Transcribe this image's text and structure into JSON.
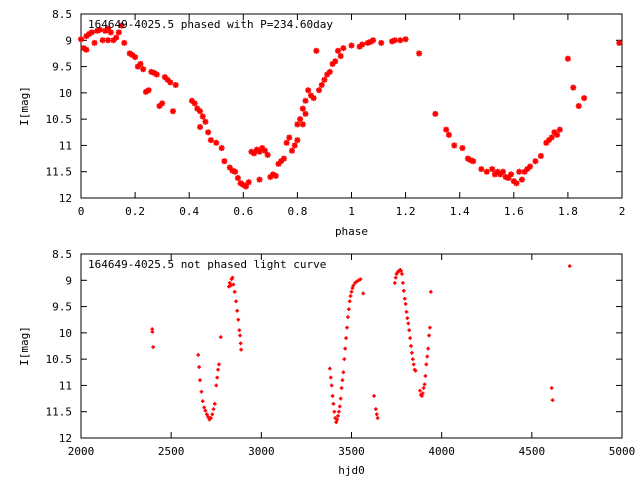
{
  "chart_data": [
    {
      "type": "scatter",
      "title": "164649-4025.5 phased with P=234.60day",
      "xlabel": "phase",
      "ylabel": "I[mag]",
      "xlim": [
        0,
        2
      ],
      "ylim": [
        8.5,
        12
      ],
      "y_inverted": true,
      "x_ticks": [
        "0",
        "0.2",
        "0.4",
        "0.6",
        "0.8",
        "1",
        "1.2",
        "1.4",
        "1.6",
        "1.8",
        "2"
      ],
      "y_ticks": [
        "8.5",
        "9",
        "9.5",
        "10",
        "10.5",
        "11",
        "11.5",
        "12"
      ],
      "grid": false,
      "marker_color": "#ff0000",
      "series": [
        {
          "points": [
            [
              0.0,
              8.98
            ],
            [
              0.01,
              9.15
            ],
            [
              0.02,
              9.18
            ],
            [
              0.02,
              8.92
            ],
            [
              0.03,
              8.88
            ],
            [
              0.04,
              8.85
            ],
            [
              0.05,
              9.05
            ],
            [
              0.06,
              8.82
            ],
            [
              0.07,
              8.8
            ],
            [
              0.08,
              9.0
            ],
            [
              0.09,
              8.82
            ],
            [
              0.1,
              8.78
            ],
            [
              0.1,
              9.0
            ],
            [
              0.11,
              8.85
            ],
            [
              0.12,
              9.0
            ],
            [
              0.13,
              8.95
            ],
            [
              0.14,
              8.85
            ],
            [
              0.15,
              8.72
            ],
            [
              0.16,
              9.05
            ],
            [
              0.18,
              9.25
            ],
            [
              0.19,
              9.28
            ],
            [
              0.2,
              9.32
            ],
            [
              0.21,
              9.5
            ],
            [
              0.22,
              9.45
            ],
            [
              0.23,
              9.55
            ],
            [
              0.24,
              9.98
            ],
            [
              0.25,
              9.95
            ],
            [
              0.26,
              9.6
            ],
            [
              0.27,
              9.62
            ],
            [
              0.28,
              9.65
            ],
            [
              0.29,
              10.25
            ],
            [
              0.3,
              10.2
            ],
            [
              0.31,
              9.7
            ],
            [
              0.32,
              9.75
            ],
            [
              0.33,
              9.8
            ],
            [
              0.34,
              10.35
            ],
            [
              0.35,
              9.85
            ],
            [
              0.41,
              10.15
            ],
            [
              0.42,
              10.2
            ],
            [
              0.43,
              10.3
            ],
            [
              0.44,
              10.35
            ],
            [
              0.45,
              10.45
            ],
            [
              0.44,
              10.65
            ],
            [
              0.46,
              10.55
            ],
            [
              0.47,
              10.75
            ],
            [
              0.48,
              10.9
            ],
            [
              0.5,
              10.95
            ],
            [
              0.52,
              11.05
            ],
            [
              0.53,
              11.3
            ],
            [
              0.55,
              11.42
            ],
            [
              0.56,
              11.48
            ],
            [
              0.57,
              11.5
            ],
            [
              0.58,
              11.62
            ],
            [
              0.59,
              11.72
            ],
            [
              0.6,
              11.75
            ],
            [
              0.61,
              11.78
            ],
            [
              0.62,
              11.7
            ],
            [
              0.63,
              11.12
            ],
            [
              0.64,
              11.15
            ],
            [
              0.65,
              11.08
            ],
            [
              0.66,
              11.12
            ],
            [
              0.66,
              11.65
            ],
            [
              0.67,
              11.05
            ],
            [
              0.68,
              11.1
            ],
            [
              0.69,
              11.18
            ],
            [
              0.7,
              11.6
            ],
            [
              0.71,
              11.55
            ],
            [
              0.72,
              11.58
            ],
            [
              0.73,
              11.35
            ],
            [
              0.74,
              11.3
            ],
            [
              0.75,
              11.25
            ],
            [
              0.76,
              10.95
            ],
            [
              0.77,
              10.85
            ],
            [
              0.78,
              11.1
            ],
            [
              0.79,
              11.0
            ],
            [
              0.8,
              10.9
            ],
            [
              0.8,
              10.6
            ],
            [
              0.81,
              10.5
            ],
            [
              0.82,
              10.3
            ],
            [
              0.82,
              10.6
            ],
            [
              0.83,
              10.15
            ],
            [
              0.83,
              10.4
            ],
            [
              0.84,
              9.95
            ],
            [
              0.85,
              10.05
            ],
            [
              0.86,
              10.1
            ],
            [
              0.87,
              9.2
            ],
            [
              0.88,
              9.95
            ],
            [
              0.89,
              9.85
            ],
            [
              0.9,
              9.75
            ],
            [
              0.91,
              9.65
            ],
            [
              0.92,
              9.6
            ],
            [
              0.93,
              9.45
            ],
            [
              0.94,
              9.4
            ],
            [
              0.95,
              9.2
            ],
            [
              0.96,
              9.3
            ],
            [
              0.97,
              9.15
            ],
            [
              1.0,
              9.1
            ],
            [
              1.03,
              9.12
            ],
            [
              1.04,
              9.08
            ],
            [
              1.06,
              9.05
            ],
            [
              1.07,
              9.03
            ],
            [
              1.08,
              9.0
            ],
            [
              1.11,
              9.05
            ],
            [
              1.15,
              9.02
            ],
            [
              1.16,
              9.0
            ],
            [
              1.18,
              9.0
            ],
            [
              1.2,
              8.98
            ],
            [
              1.25,
              9.25
            ],
            [
              1.31,
              10.4
            ],
            [
              1.35,
              10.7
            ],
            [
              1.36,
              10.8
            ],
            [
              1.38,
              11.0
            ],
            [
              1.41,
              11.05
            ],
            [
              1.43,
              11.25
            ],
            [
              1.44,
              11.28
            ],
            [
              1.45,
              11.3
            ],
            [
              1.48,
              11.45
            ],
            [
              1.5,
              11.5
            ],
            [
              1.52,
              11.45
            ],
            [
              1.53,
              11.55
            ],
            [
              1.54,
              11.5
            ],
            [
              1.55,
              11.55
            ],
            [
              1.56,
              11.5
            ],
            [
              1.57,
              11.6
            ],
            [
              1.58,
              11.62
            ],
            [
              1.59,
              11.55
            ],
            [
              1.6,
              11.68
            ],
            [
              1.61,
              11.72
            ],
            [
              1.62,
              11.5
            ],
            [
              1.63,
              11.65
            ],
            [
              1.64,
              11.5
            ],
            [
              1.65,
              11.45
            ],
            [
              1.66,
              11.4
            ],
            [
              1.68,
              11.3
            ],
            [
              1.7,
              11.2
            ],
            [
              1.72,
              10.95
            ],
            [
              1.73,
              10.9
            ],
            [
              1.74,
              10.85
            ],
            [
              1.75,
              10.75
            ],
            [
              1.76,
              10.8
            ],
            [
              1.77,
              10.7
            ],
            [
              1.8,
              9.35
            ],
            [
              1.82,
              9.9
            ],
            [
              1.84,
              10.25
            ],
            [
              1.86,
              10.1
            ],
            [
              1.99,
              9.05
            ]
          ]
        }
      ]
    },
    {
      "type": "scatter",
      "title": "164649-4025.5 not phased light curve",
      "xlabel": "hjd0",
      "ylabel": "I[mag]",
      "xlim": [
        2000,
        5000
      ],
      "ylim": [
        8.5,
        12
      ],
      "y_inverted": true,
      "x_ticks": [
        "2000",
        "2500",
        "3000",
        "3500",
        "4000",
        "4500",
        "5000"
      ],
      "y_ticks": [
        "8.5",
        "9",
        "9.5",
        "10",
        "10.5",
        "11",
        "11.5",
        "12"
      ],
      "grid": false,
      "marker_color": "#ff0000",
      "series": [
        {
          "points": [
            [
              2395,
              9.93
            ],
            [
              2396,
              9.98
            ],
            [
              2400,
              10.27
            ],
            [
              2650,
              10.42
            ],
            [
              2655,
              10.65
            ],
            [
              2660,
              10.9
            ],
            [
              2668,
              11.12
            ],
            [
              2675,
              11.3
            ],
            [
              2683,
              11.42
            ],
            [
              2690,
              11.48
            ],
            [
              2698,
              11.55
            ],
            [
              2705,
              11.6
            ],
            [
              2712,
              11.65
            ],
            [
              2720,
              11.62
            ],
            [
              2728,
              11.55
            ],
            [
              2735,
              11.45
            ],
            [
              2742,
              11.35
            ],
            [
              2750,
              11.0
            ],
            [
              2755,
              10.85
            ],
            [
              2760,
              10.7
            ],
            [
              2765,
              10.6
            ],
            [
              2775,
              10.08
            ],
            [
              2820,
              9.12
            ],
            [
              2825,
              9.05
            ],
            [
              2830,
              9.1
            ],
            [
              2835,
              8.98
            ],
            [
              2840,
              8.95
            ],
            [
              2845,
              9.08
            ],
            [
              2852,
              9.22
            ],
            [
              2860,
              9.4
            ],
            [
              2866,
              9.58
            ],
            [
              2872,
              9.75
            ],
            [
              2878,
              9.95
            ],
            [
              2882,
              10.05
            ],
            [
              2885,
              10.2
            ],
            [
              2888,
              10.32
            ],
            [
              3380,
              10.68
            ],
            [
              3385,
              10.85
            ],
            [
              3390,
              11.0
            ],
            [
              3395,
              11.2
            ],
            [
              3400,
              11.35
            ],
            [
              3405,
              11.5
            ],
            [
              3410,
              11.62
            ],
            [
              3415,
              11.7
            ],
            [
              3420,
              11.65
            ],
            [
              3425,
              11.58
            ],
            [
              3430,
              11.5
            ],
            [
              3435,
              11.4
            ],
            [
              3440,
              11.25
            ],
            [
              3445,
              11.05
            ],
            [
              3450,
              10.9
            ],
            [
              3455,
              10.75
            ],
            [
              3460,
              10.5
            ],
            [
              3465,
              10.3
            ],
            [
              3470,
              10.1
            ],
            [
              3475,
              9.9
            ],
            [
              3480,
              9.7
            ],
            [
              3485,
              9.55
            ],
            [
              3490,
              9.4
            ],
            [
              3495,
              9.3
            ],
            [
              3500,
              9.22
            ],
            [
              3505,
              9.15
            ],
            [
              3510,
              9.1
            ],
            [
              3520,
              9.05
            ],
            [
              3530,
              9.02
            ],
            [
              3540,
              9.0
            ],
            [
              3550,
              8.98
            ],
            [
              3565,
              9.25
            ],
            [
              3625,
              11.2
            ],
            [
              3635,
              11.45
            ],
            [
              3640,
              11.55
            ],
            [
              3645,
              11.62
            ],
            [
              3740,
              9.05
            ],
            [
              3745,
              8.95
            ],
            [
              3750,
              8.88
            ],
            [
              3755,
              8.85
            ],
            [
              3760,
              8.83
            ],
            [
              3765,
              8.82
            ],
            [
              3770,
              8.8
            ],
            [
              3775,
              8.82
            ],
            [
              3780,
              8.88
            ],
            [
              3785,
              9.05
            ],
            [
              3790,
              9.2
            ],
            [
              3795,
              9.35
            ],
            [
              3800,
              9.45
            ],
            [
              3805,
              9.6
            ],
            [
              3810,
              9.72
            ],
            [
              3815,
              9.82
            ],
            [
              3820,
              9.95
            ],
            [
              3825,
              10.1
            ],
            [
              3830,
              10.25
            ],
            [
              3835,
              10.38
            ],
            [
              3840,
              10.5
            ],
            [
              3845,
              10.6
            ],
            [
              3850,
              10.7
            ],
            [
              3855,
              10.72
            ],
            [
              3880,
              11.1
            ],
            [
              3885,
              11.18
            ],
            [
              3890,
              11.2
            ],
            [
              3895,
              11.15
            ],
            [
              3900,
              11.05
            ],
            [
              3905,
              10.98
            ],
            [
              3910,
              10.82
            ],
            [
              3915,
              10.6
            ],
            [
              3920,
              10.45
            ],
            [
              3925,
              10.3
            ],
            [
              3930,
              10.05
            ],
            [
              3935,
              9.9
            ],
            [
              3940,
              9.22
            ],
            [
              4610,
              11.05
            ],
            [
              4615,
              11.28
            ],
            [
              4710,
              8.73
            ]
          ]
        }
      ]
    }
  ]
}
